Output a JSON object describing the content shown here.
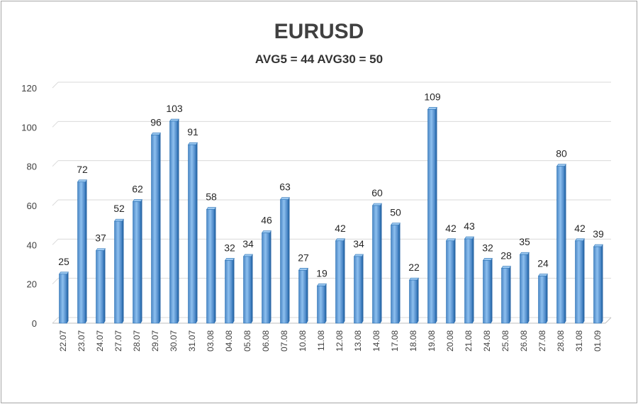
{
  "chart_data": {
    "type": "bar",
    "title": "EURUSD",
    "subtitle": "AVG5 = 44 AVG30 = 50",
    "xlabel": "",
    "ylabel": "",
    "ylim": [
      0,
      120
    ],
    "yticks": [
      0,
      20,
      40,
      60,
      80,
      100,
      120
    ],
    "grid": true,
    "legend": "none",
    "bar_color": "#5b9bd5",
    "bar_edge_color": "#2e75b6",
    "categories": [
      "22.07",
      "23.07",
      "24.07",
      "27.07",
      "28.07",
      "29.07",
      "30.07",
      "31.07",
      "03.08",
      "04.08",
      "05.08",
      "06.08",
      "07.08",
      "10.08",
      "11.08",
      "12.08",
      "13.08",
      "14.08",
      "17.08",
      "18.08",
      "19.08",
      "20.08",
      "21.08",
      "24.08",
      "25.08",
      "26.08",
      "27.08",
      "28.08",
      "31.08",
      "01.09"
    ],
    "values": [
      25,
      72,
      37,
      52,
      62,
      96,
      103,
      91,
      58,
      32,
      34,
      46,
      63,
      27,
      19,
      42,
      34,
      60,
      50,
      22,
      109,
      42,
      43,
      32,
      28,
      35,
      24,
      80,
      42,
      39
    ]
  }
}
